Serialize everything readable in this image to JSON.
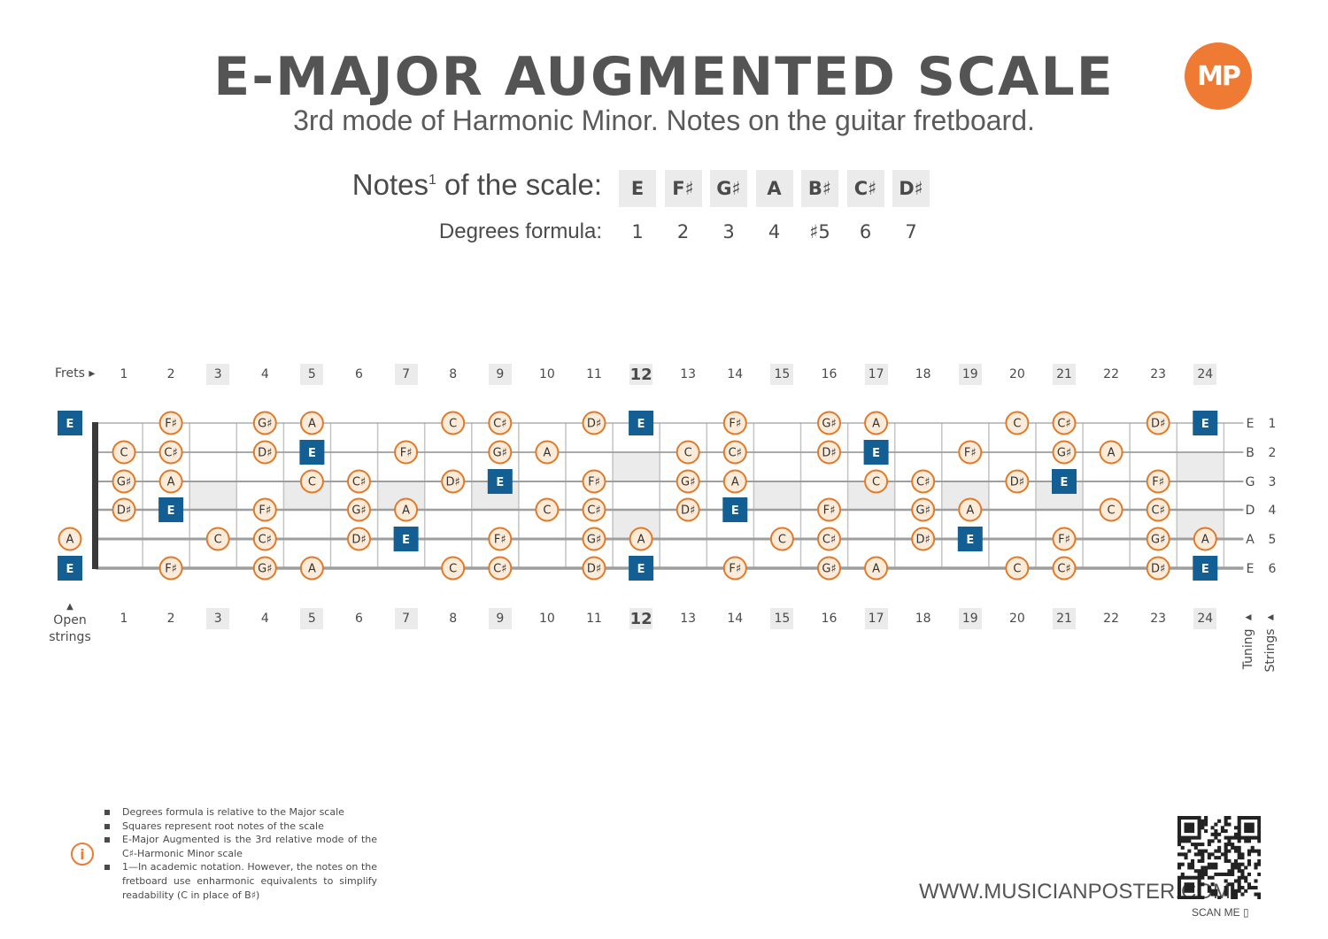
{
  "header": {
    "title": "E-MAJOR AUGMENTED SCALE",
    "subtitle": "3rd mode of Harmonic Minor. Notes on the guitar fretboard.",
    "logo_text": "MP"
  },
  "scale": {
    "notes_label": "Notes",
    "notes_sup": "1",
    "notes_label_tail": " of the scale:",
    "degrees_label": "Degrees formula:",
    "notes": [
      "E",
      "F♯",
      "G♯",
      "A",
      "B♯",
      "C♯",
      "D♯"
    ],
    "degrees": [
      "1",
      "2",
      "3",
      "4",
      "♯5",
      "6",
      "7"
    ]
  },
  "fretboard": {
    "frets_label": "Frets",
    "frets": [
      "1",
      "2",
      "3",
      "4",
      "5",
      "6",
      "7",
      "8",
      "9",
      "10",
      "11",
      "12",
      "13",
      "14",
      "15",
      "16",
      "17",
      "18",
      "19",
      "20",
      "21",
      "22",
      "23",
      "24"
    ],
    "highlighted_frets": [
      3,
      5,
      7,
      9,
      12,
      15,
      17,
      19,
      21,
      24
    ],
    "bold_fret": 12,
    "open_strings_label": [
      "Open",
      "strings"
    ],
    "tuning_label": "Tuning",
    "strings_label": "Strings",
    "root": "E",
    "colors": {
      "root": "#135f93",
      "note_border": "#e07a2a",
      "note_fill": "#fcebd8",
      "string": "#9e9e9e",
      "nut": "#3a3a3a",
      "shade": "#ebebeb"
    },
    "strings": [
      {
        "number": "1",
        "tuning": "E",
        "open": "E",
        "notes": [
          "",
          "F♯",
          "",
          "G♯",
          "A",
          "",
          "",
          "C",
          "C♯",
          "",
          "D♯",
          "E",
          "",
          "F♯",
          "",
          "G♯",
          "A",
          "",
          "",
          "C",
          "C♯",
          "",
          "D♯",
          "E"
        ]
      },
      {
        "number": "2",
        "tuning": "B",
        "open": "",
        "notes": [
          "C",
          "C♯",
          "",
          "D♯",
          "E",
          "",
          "F♯",
          "",
          "G♯",
          "A",
          "",
          "",
          "C",
          "C♯",
          "",
          "D♯",
          "E",
          "",
          "F♯",
          "",
          "G♯",
          "A",
          "",
          ""
        ]
      },
      {
        "number": "3",
        "tuning": "G",
        "open": "",
        "notes": [
          "G♯",
          "A",
          "",
          "",
          "C",
          "C♯",
          "",
          "D♯",
          "E",
          "",
          "F♯",
          "",
          "G♯",
          "A",
          "",
          "",
          "C",
          "C♯",
          "",
          "D♯",
          "E",
          "",
          "F♯",
          ""
        ]
      },
      {
        "number": "4",
        "tuning": "D",
        "open": "",
        "notes": [
          "D♯",
          "E",
          "",
          "F♯",
          "",
          "G♯",
          "A",
          "",
          "",
          "C",
          "C♯",
          "",
          "D♯",
          "E",
          "",
          "F♯",
          "",
          "G♯",
          "A",
          "",
          "",
          "C",
          "C♯",
          ""
        ]
      },
      {
        "number": "5",
        "tuning": "A",
        "open": "A",
        "notes": [
          "",
          "",
          "C",
          "C♯",
          "",
          "D♯",
          "E",
          "",
          "F♯",
          "",
          "G♯",
          "A",
          "",
          "",
          "C",
          "C♯",
          "",
          "D♯",
          "E",
          "",
          "F♯",
          "",
          "G♯",
          "A"
        ]
      },
      {
        "number": "6",
        "tuning": "E",
        "open": "E",
        "notes": [
          "",
          "F♯",
          "",
          "G♯",
          "A",
          "",
          "",
          "C",
          "C♯",
          "",
          "D♯",
          "E",
          "",
          "F♯",
          "",
          "G♯",
          "A",
          "",
          "",
          "C",
          "C♯",
          "",
          "D♯",
          "E"
        ]
      }
    ]
  },
  "footnotes": [
    "Degrees formula is relative to the Major scale",
    "Squares represent root notes of the scale",
    "E-Major Augmented is the 3rd relative mode of the C♯-Harmonic Minor scale",
    "1—In academic notation. However, the notes on the fretboard use enharmonic equivalents to simplify readability (C in place of B♯)"
  ],
  "footer": {
    "website": "WWW.MUSICIANPOSTER.COM",
    "scan_label": "SCAN ME"
  }
}
